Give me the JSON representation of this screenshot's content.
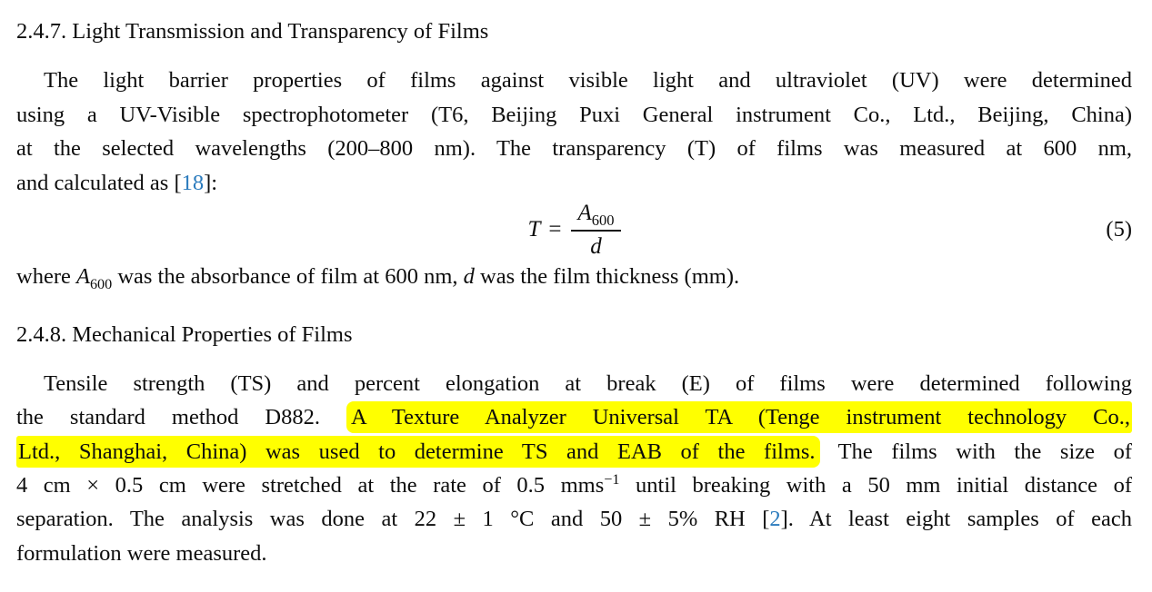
{
  "colors": {
    "background": "#ffffff",
    "text": "#0d0d0d",
    "citation_link": "#2b7bbd",
    "highlight": "#ffff00"
  },
  "equation": {
    "lhs": "T",
    "rel": "=",
    "numerator_base": "A",
    "numerator_sub": "600",
    "denominator": "d",
    "label": "(5)"
  },
  "flow1": [
    {
      "kind": "heading",
      "name": "section-heading-2-4-7",
      "runs": [
        {
          "t": "2.4.7. Light Transmission and Transparency of Films"
        }
      ]
    },
    {
      "kind": "line",
      "indent": true,
      "runs": [
        {
          "t": "The light barrier properties of films against visible light and ultraviolet (UV) were determined"
        }
      ]
    },
    {
      "kind": "line",
      "runs": [
        {
          "t": "using a UV-Visible spectrophotometer (T6, Beijing Puxi General instrument Co., Ltd., Beijing, China)"
        }
      ]
    },
    {
      "kind": "line",
      "runs": [
        {
          "t": "at the selected wavelengths (200–800 nm). The transparency (T) of films was measured at 600 nm,"
        }
      ]
    },
    {
      "kind": "line",
      "last": true,
      "runs": [
        {
          "t": "and calculated as ["
        },
        {
          "t": "18",
          "s": "link",
          "n": "citation-link-18"
        },
        {
          "t": "]:"
        }
      ]
    }
  ],
  "flow2": [
    {
      "kind": "line",
      "last": true,
      "name": "equation-where-clause",
      "runs": [
        {
          "t": "where "
        },
        {
          "t": "A",
          "s": "i"
        },
        {
          "t": "600",
          "s": "sub"
        },
        {
          "t": " was the absorbance of film at 600 nm, "
        },
        {
          "t": "d",
          "s": "i"
        },
        {
          "t": " was the film thickness (mm)."
        }
      ]
    },
    {
      "kind": "heading",
      "second": true,
      "name": "section-heading-2-4-8",
      "runs": [
        {
          "t": "2.4.8. Mechanical Properties of Films"
        }
      ]
    },
    {
      "kind": "line",
      "indent": true,
      "runs": [
        {
          "t": "Tensile strength (TS) and percent elongation at break (E) of films were determined following"
        }
      ]
    },
    {
      "kind": "line",
      "runs": [
        {
          "t": "the standard method D882. "
        },
        {
          "t": "A Texture Analyzer Universal TA (Tenge instrument technology Co.,",
          "s": "hl hl-start",
          "n": "highlighted-text"
        }
      ]
    },
    {
      "kind": "line",
      "runs": [
        {
          "t": "Ltd., Shanghai, China) was used to determine TS and EAB of the films.",
          "s": "hl hl-end",
          "n": "highlighted-text"
        },
        {
          "t": " The films with the size of"
        }
      ]
    },
    {
      "kind": "line",
      "runs": [
        {
          "t": "4 cm × 0.5 cm were stretched at the rate of 0.5 mms"
        },
        {
          "t": "−1",
          "s": "sup"
        },
        {
          "t": " until breaking with a 50 mm initial distance of"
        }
      ]
    },
    {
      "kind": "line",
      "runs": [
        {
          "t": "separation. The analysis was done at 22 ± 1 °C and 50 ± 5% RH ["
        },
        {
          "t": "2",
          "s": "link",
          "n": "citation-link-2"
        },
        {
          "t": "]. At least eight samples of each"
        }
      ]
    },
    {
      "kind": "line",
      "last": true,
      "runs": [
        {
          "t": "formulation were measured."
        }
      ]
    }
  ]
}
